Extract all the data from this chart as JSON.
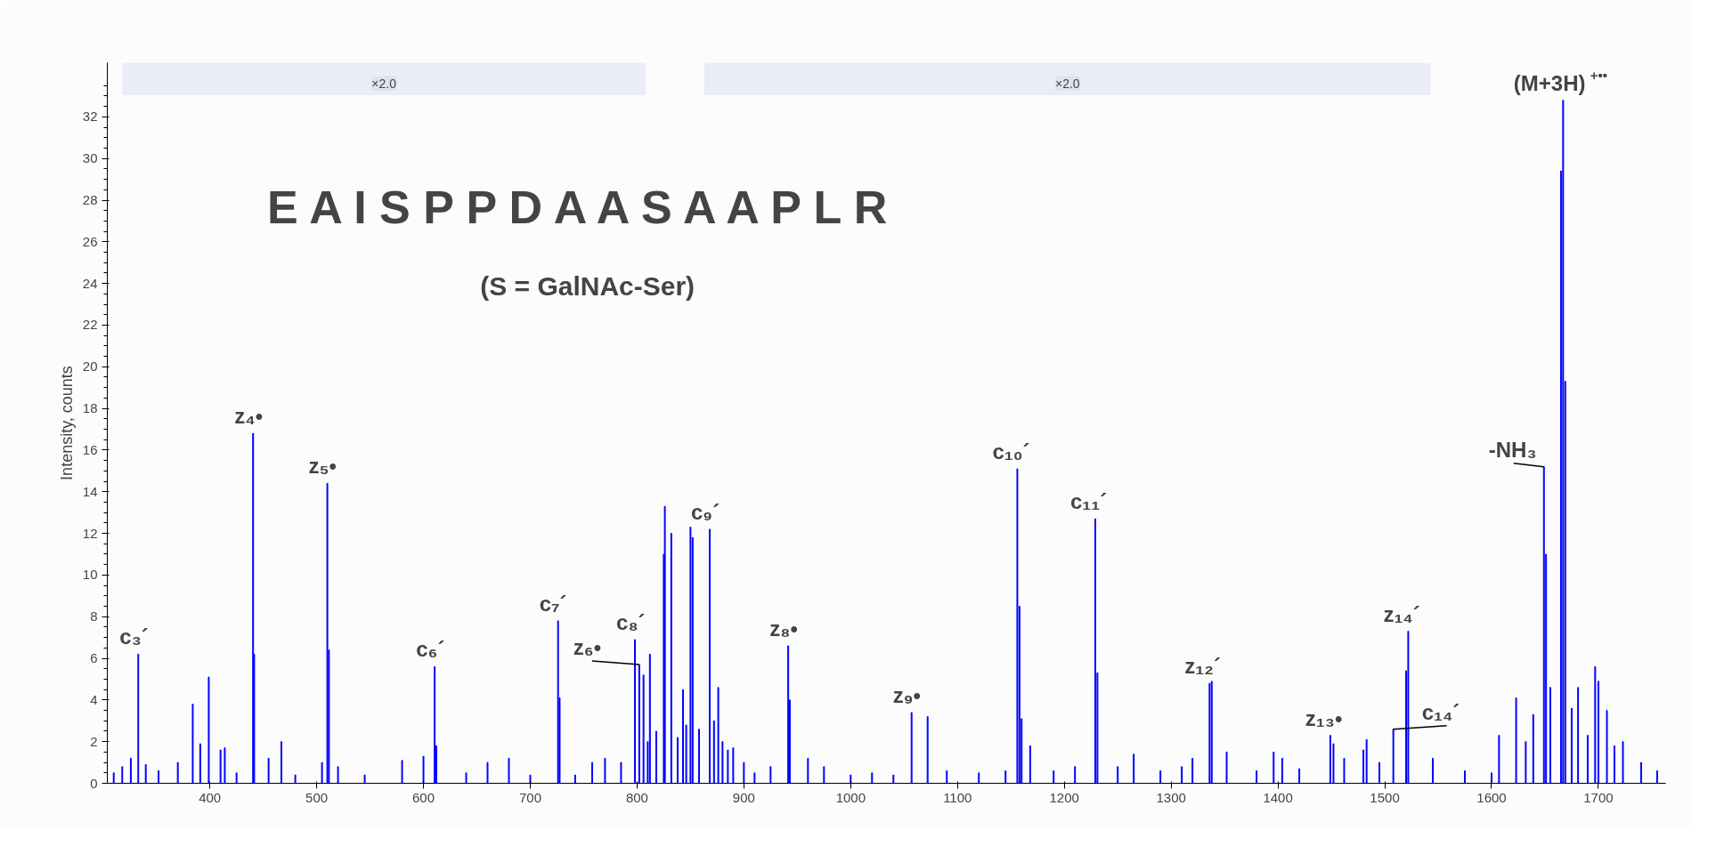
{
  "chart_data": {
    "type": "bar",
    "ylabel": "Intensity, counts",
    "xlim": [
      304,
      1763
    ],
    "ylim": [
      0,
      34.6
    ],
    "xticks": [
      400,
      500,
      600,
      700,
      800,
      900,
      1000,
      1100,
      1200,
      1300,
      1400,
      1500,
      1600,
      1700
    ],
    "yticks": [
      0,
      2,
      4,
      6,
      8,
      10,
      12,
      14,
      16,
      18,
      20,
      22,
      24,
      26,
      28,
      30,
      32
    ],
    "x": [
      310,
      318,
      326,
      333,
      340,
      352,
      370,
      384,
      391,
      399,
      410,
      414,
      425,
      440.5,
      441.5,
      455,
      467,
      480,
      505,
      510,
      511.5,
      520,
      545,
      580,
      600,
      610.5,
      612,
      640,
      660,
      680,
      700,
      726,
      727.5,
      742,
      758,
      770,
      785,
      798,
      802,
      806,
      810,
      812,
      818,
      825,
      826,
      832,
      838,
      843,
      846,
      850,
      852,
      858,
      868,
      872,
      876,
      880,
      885,
      890,
      900,
      910,
      925,
      941.5,
      943,
      960,
      975,
      1000,
      1020,
      1040,
      1057,
      1072,
      1090,
      1120,
      1145,
      1156,
      1158,
      1160,
      1168,
      1190,
      1210,
      1229,
      1231,
      1250,
      1265,
      1290,
      1310,
      1320,
      1336,
      1338,
      1352,
      1380,
      1396,
      1404,
      1420,
      1449,
      1452,
      1462,
      1480,
      1483,
      1495,
      1508,
      1520,
      1522,
      1545,
      1575,
      1600,
      1607,
      1623,
      1632,
      1639,
      1649,
      1651,
      1655,
      1665,
      1667,
      1669,
      1675,
      1681,
      1690,
      1697,
      1700,
      1708,
      1715,
      1723,
      1740,
      1755
    ],
    "values": [
      0.5,
      0.8,
      1.2,
      6.2,
      0.9,
      0.6,
      1.0,
      3.8,
      1.9,
      5.1,
      1.6,
      1.7,
      0.5,
      16.8,
      6.2,
      1.2,
      2.0,
      0.4,
      1.0,
      14.4,
      6.4,
      0.8,
      0.4,
      1.1,
      1.3,
      5.6,
      1.8,
      0.5,
      1.0,
      1.2,
      0.4,
      7.8,
      4.1,
      0.4,
      1.0,
      1.2,
      1.0,
      6.9,
      5.7,
      5.2,
      2.0,
      6.2,
      2.5,
      11.0,
      13.3,
      12.0,
      2.2,
      4.5,
      2.8,
      12.3,
      11.8,
      2.6,
      12.2,
      3.0,
      4.6,
      2.0,
      1.6,
      1.7,
      1.0,
      0.5,
      0.8,
      6.6,
      4.0,
      1.2,
      0.8,
      0.4,
      0.5,
      0.4,
      3.4,
      3.2,
      0.6,
      0.5,
      0.6,
      15.1,
      8.5,
      3.1,
      1.8,
      0.6,
      0.8,
      12.7,
      5.3,
      0.8,
      1.4,
      0.6,
      0.8,
      1.2,
      4.8,
      4.9,
      1.5,
      0.6,
      1.5,
      1.2,
      0.7,
      2.3,
      1.9,
      1.2,
      1.6,
      2.1,
      1.0,
      2.6,
      5.4,
      7.3,
      1.2,
      0.6,
      0.5,
      2.3,
      4.1,
      2.0,
      3.3,
      15.2,
      11.0,
      4.6,
      29.4,
      32.8,
      19.3,
      3.6,
      4.6,
      2.3,
      5.6,
      4.9,
      3.5,
      1.8,
      2.0,
      1.0,
      0.6
    ],
    "color": "#0000ff",
    "bands": [
      {
        "axis": "x",
        "from": 318,
        "to": 808,
        "label": "×2.0"
      },
      {
        "axis": "x",
        "from": 863,
        "to": 1543,
        "label": "×2.0"
      }
    ],
    "annotations": [
      "E A I S P P D A A S A A P L R",
      "(S = GalNAc-Ser)",
      {
        "text": "c₃´",
        "x": 333,
        "y": 6.2
      },
      {
        "text": "z₄•",
        "x": 440.5,
        "y": 16.8
      },
      {
        "text": "z₅•",
        "x": 510,
        "y": 14.4
      },
      {
        "text": "c₆´",
        "x": 610.5,
        "y": 5.6
      },
      {
        "text": "c₇´",
        "x": 726,
        "y": 7.8
      },
      {
        "text": "c₈´",
        "x": 798,
        "y": 6.9
      },
      {
        "text": "z₆•",
        "x": 802,
        "y": 5.7
      },
      {
        "text": "c₉´",
        "x": 868,
        "y": 12.2
      },
      {
        "text": "z₈•",
        "x": 941.5,
        "y": 6.6
      },
      {
        "text": "z₉•",
        "x": 1057,
        "y": 3.4
      },
      {
        "text": "c₁₀´",
        "x": 1156,
        "y": 15.1
      },
      {
        "text": "c₁₁´",
        "x": 1229,
        "y": 12.7
      },
      {
        "text": "z₁₂´",
        "x": 1336,
        "y": 4.8
      },
      {
        "text": "z₁₃•",
        "x": 1449,
        "y": 2.3
      },
      {
        "text": "c₁₄´",
        "x": 1508,
        "y": 2.6
      },
      {
        "text": "z₁₄´",
        "x": 1522,
        "y": 7.3
      },
      {
        "text": "-NH₃",
        "x": 1649,
        "y": 15.2
      },
      {
        "text": "(M+3H)$^{+••}$",
        "x": 1667,
        "y": 32.8
      }
    ],
    "grid": false
  }
}
